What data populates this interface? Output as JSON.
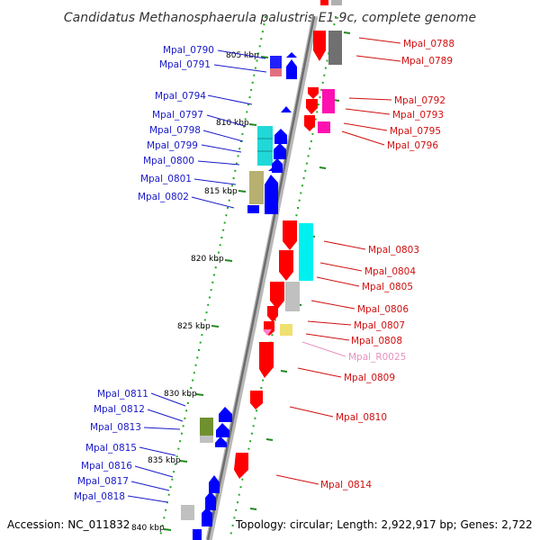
{
  "title": "Candidatus Methanosphaerula palustris E1-9c, complete genome",
  "footer": {
    "accession": "Accession: NC_011832",
    "topology": "Topology: circular; Length: 2,922,917 bp; Genes: 2,722"
  },
  "colors": {
    "backbone": "#909090",
    "forward_strand": "#ff0000",
    "reverse_strand": "#0000ff",
    "ruler_dots": "#22aa22"
  },
  "scale_labels": [
    "805 kbp",
    "810 kbp",
    "815 kbp",
    "820 kbp",
    "825 kbp",
    "830 kbp",
    "835 kbp",
    "840 kbp"
  ],
  "left_genes": [
    "Mpal_0790",
    "Mpal_0791",
    "Mpal_0794",
    "Mpal_0797",
    "Mpal_0798",
    "Mpal_0799",
    "Mpal_0800",
    "Mpal_0801",
    "Mpal_0802",
    "Mpal_0811",
    "Mpal_0812",
    "Mpal_0813",
    "Mpal_0815",
    "Mpal_0816",
    "Mpal_0817",
    "Mpal_0818"
  ],
  "right_genes": [
    "Mpal_0788",
    "Mpal_0789",
    "Mpal_0792",
    "Mpal_0793",
    "Mpal_0795",
    "Mpal_0796",
    "Mpal_0803",
    "Mpal_0804",
    "Mpal_0805",
    "Mpal_0806",
    "Mpal_0807",
    "Mpal_0808",
    "Mpal_R0025",
    "Mpal_0809",
    "Mpal_0810",
    "Mpal_0814"
  ]
}
